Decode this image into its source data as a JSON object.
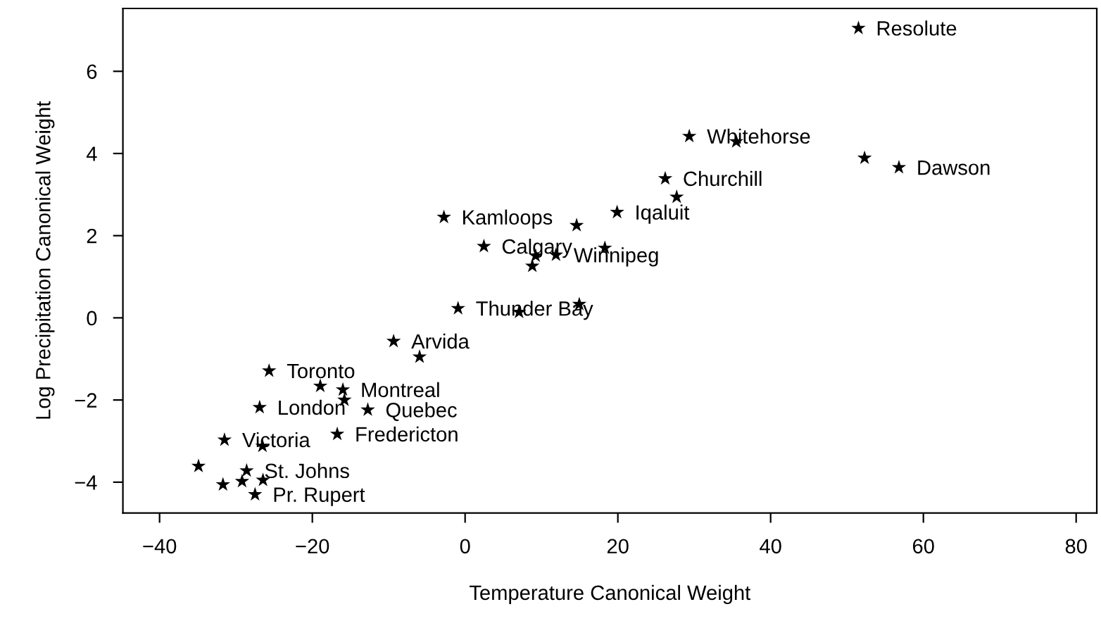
{
  "chart_data": {
    "type": "scatter",
    "xlabel": "Temperature Canonical Weight",
    "ylabel": "Log Precipitation Canonical Weight",
    "x": [
      -2.77,
      2.46,
      9.23,
      8.8,
      -0.92,
      7.07,
      -9.36,
      -5.96,
      -25.66,
      -18.96,
      -16.0,
      -15.8,
      -26.9,
      -12.74,
      -16.74,
      -31.5,
      -26.53,
      -34.9,
      -28.6,
      -31.7,
      -29.2,
      -26.46,
      -27.5,
      51.5,
      29.35,
      35.5,
      52.3,
      56.8,
      26.2,
      27.7,
      19.9,
      14.6,
      18.3,
      11.9,
      14.95
    ],
    "values": [
      2.45,
      1.74,
      1.51,
      1.26,
      0.23,
      0.14,
      -0.57,
      -0.95,
      -1.29,
      -1.66,
      -1.75,
      -2.0,
      -2.18,
      -2.24,
      -2.83,
      -2.97,
      -3.12,
      -3.61,
      -3.72,
      -4.06,
      -3.98,
      -3.95,
      -4.3,
      7.05,
      4.42,
      4.29,
      3.89,
      3.66,
      3.39,
      2.94,
      2.57,
      2.25,
      1.7,
      1.53,
      0.33
    ],
    "color": "#000000",
    "marker": "star",
    "xlim": [
      -44.8,
      82.7
    ],
    "ylim": [
      -4.75,
      7.53
    ],
    "xticks": [
      -40,
      -20,
      0,
      20,
      40,
      60,
      80
    ],
    "yticks": [
      -4,
      -2,
      0,
      2,
      4,
      6
    ],
    "grid": false,
    "legend": false,
    "annotations": [
      {
        "text": "Kamloops",
        "x": -2.77,
        "y": 2.45
      },
      {
        "text": "Calgary",
        "x": 2.46,
        "y": 1.74
      },
      {
        "text": "Winnipeg",
        "x": 11.9,
        "y": 1.53
      },
      {
        "text": "Thunder Bay",
        "x": -0.92,
        "y": 0.23
      },
      {
        "text": "Arvida",
        "x": -9.36,
        "y": -0.57
      },
      {
        "text": "Toronto",
        "x": -25.66,
        "y": -1.29
      },
      {
        "text": "Montreal",
        "x": -16.0,
        "y": -1.75
      },
      {
        "text": "London",
        "x": -26.9,
        "y": -2.18
      },
      {
        "text": "Quebec",
        "x": -12.74,
        "y": -2.24
      },
      {
        "text": "Fredericton",
        "x": -16.74,
        "y": -2.83
      },
      {
        "text": "Victoria",
        "x": -31.5,
        "y": -2.97
      },
      {
        "text": "St. Johns",
        "x": -28.6,
        "y": -3.72
      },
      {
        "text": "Pr. Rupert",
        "x": -27.5,
        "y": -4.3
      },
      {
        "text": "Resolute",
        "x": 51.5,
        "y": 7.05
      },
      {
        "text": "Whitehorse",
        "x": 29.35,
        "y": 4.42
      },
      {
        "text": "Churchill",
        "x": 26.2,
        "y": 3.39
      },
      {
        "text": "Iqaluit",
        "x": 19.9,
        "y": 2.57
      },
      {
        "text": "Dawson",
        "x": 56.8,
        "y": 3.66
      }
    ]
  }
}
